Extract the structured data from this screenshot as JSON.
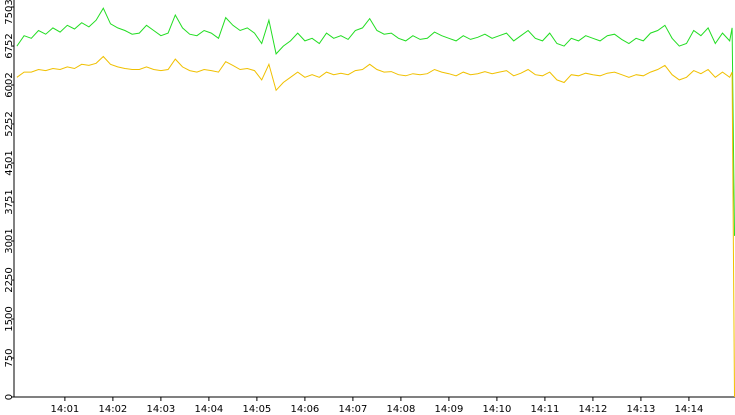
{
  "chart_data": {
    "type": "line",
    "x": [
      0,
      0.15,
      0.3,
      0.45,
      0.6,
      0.75,
      0.9,
      1.05,
      1.2,
      1.35,
      1.5,
      1.65,
      1.8,
      1.95,
      2.1,
      2.25,
      2.4,
      2.55,
      2.7,
      2.85,
      3.0,
      3.15,
      3.3,
      3.45,
      3.6,
      3.75,
      3.9,
      4.05,
      4.2,
      4.35,
      4.5,
      4.65,
      4.8,
      4.95,
      5.1,
      5.25,
      5.4,
      5.55,
      5.7,
      5.85,
      6.0,
      6.15,
      6.3,
      6.45,
      6.6,
      6.75,
      6.9,
      7.05,
      7.2,
      7.35,
      7.5,
      7.65,
      7.8,
      7.95,
      8.1,
      8.25,
      8.4,
      8.55,
      8.7,
      8.85,
      9.0,
      9.15,
      9.3,
      9.45,
      9.6,
      9.75,
      9.9,
      10.05,
      10.2,
      10.35,
      10.5,
      10.65,
      10.8,
      10.95,
      11.1,
      11.25,
      11.4,
      11.55,
      11.7,
      11.85,
      12.0,
      12.15,
      12.3,
      12.45,
      12.6,
      12.75,
      12.9,
      13.05,
      13.2,
      13.35,
      13.5,
      13.65,
      13.8,
      13.95,
      14.1,
      14.25,
      14.4,
      14.55,
      14.7,
      14.85,
      14.9,
      14.95
    ],
    "series": [
      {
        "color": "#22dd22",
        "values": [
          6750,
          6950,
          6900,
          7050,
          6980,
          7100,
          7020,
          7150,
          7080,
          7200,
          7120,
          7250,
          7480,
          7180,
          7100,
          7050,
          6980,
          7000,
          7150,
          7050,
          6950,
          7000,
          7350,
          7100,
          6980,
          6950,
          7050,
          7000,
          6900,
          7300,
          7150,
          7050,
          7100,
          7000,
          6800,
          7250,
          6600,
          6750,
          6850,
          7000,
          6850,
          6900,
          6800,
          7000,
          6900,
          6950,
          6880,
          7050,
          7100,
          7280,
          7050,
          6980,
          7000,
          6900,
          6850,
          6950,
          6880,
          6900,
          7020,
          6950,
          6900,
          6850,
          6950,
          6880,
          6920,
          6980,
          6900,
          6950,
          7000,
          6850,
          6950,
          7050,
          6900,
          6850,
          7000,
          6800,
          6750,
          6900,
          6850,
          6950,
          6900,
          6850,
          6950,
          6980,
          6880,
          6800,
          6900,
          6850,
          7000,
          7050,
          7150,
          6900,
          6750,
          6800,
          7050,
          6950,
          7100,
          6800,
          7000,
          6850,
          7100,
          3100
        ]
      },
      {
        "color": "#f0c000",
        "values": [
          6150,
          6250,
          6250,
          6300,
          6280,
          6320,
          6300,
          6350,
          6320,
          6400,
          6380,
          6420,
          6550,
          6400,
          6350,
          6320,
          6300,
          6300,
          6350,
          6300,
          6280,
          6300,
          6500,
          6350,
          6280,
          6250,
          6300,
          6280,
          6250,
          6450,
          6380,
          6300,
          6320,
          6280,
          6100,
          6400,
          5900,
          6050,
          6150,
          6250,
          6150,
          6200,
          6150,
          6250,
          6200,
          6230,
          6200,
          6280,
          6300,
          6400,
          6300,
          6250,
          6260,
          6200,
          6180,
          6220,
          6200,
          6220,
          6300,
          6250,
          6220,
          6180,
          6250,
          6200,
          6220,
          6260,
          6220,
          6250,
          6280,
          6180,
          6230,
          6300,
          6200,
          6180,
          6250,
          6100,
          6050,
          6200,
          6180,
          6230,
          6200,
          6180,
          6230,
          6250,
          6200,
          6150,
          6200,
          6180,
          6250,
          6300,
          6380,
          6200,
          6100,
          6150,
          6280,
          6220,
          6300,
          6150,
          6250,
          6150,
          6250,
          0
        ]
      }
    ],
    "xlim": [
      -0.06,
      14.96
    ],
    "xticks": [
      {
        "value": 1,
        "label": "14:01"
      },
      {
        "value": 2,
        "label": "14:02"
      },
      {
        "value": 3,
        "label": "14:03"
      },
      {
        "value": 4,
        "label": "14:04"
      },
      {
        "value": 5,
        "label": "14:05"
      },
      {
        "value": 6,
        "label": "14:06"
      },
      {
        "value": 7,
        "label": "14:07"
      },
      {
        "value": 8,
        "label": "14:08"
      },
      {
        "value": 9,
        "label": "14:09"
      },
      {
        "value": 10,
        "label": "14:10"
      },
      {
        "value": 11,
        "label": "14:11"
      },
      {
        "value": 12,
        "label": "14:12"
      },
      {
        "value": 13,
        "label": "14:13"
      },
      {
        "value": 14,
        "label": "14:14"
      }
    ],
    "ylim": [
      0,
      7503
    ],
    "yticks": [
      0,
      750,
      1500,
      2250,
      3001,
      3751,
      4501,
      5252,
      6002,
      6752,
      7503
    ]
  }
}
